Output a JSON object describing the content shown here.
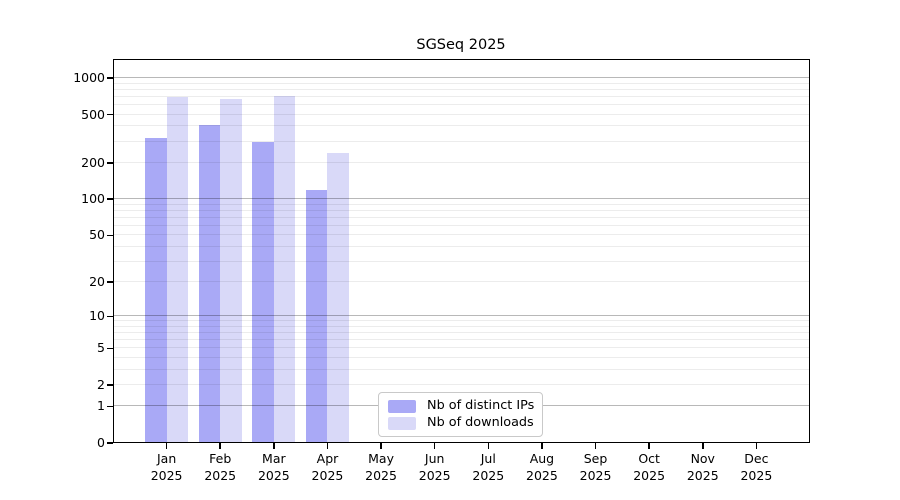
{
  "title": "SGSeq 2025",
  "x_axis": {
    "months": [
      "Jan",
      "Feb",
      "Mar",
      "Apr",
      "May",
      "Jun",
      "Jul",
      "Aug",
      "Sep",
      "Oct",
      "Nov",
      "Dec"
    ],
    "year": "2025"
  },
  "y_axis": {
    "tick_labels": [
      "0",
      "1",
      "2",
      "5",
      "10",
      "20",
      "50",
      "100",
      "200",
      "500",
      "1000"
    ]
  },
  "legend": {
    "items": [
      {
        "label": "Nb of distinct IPs",
        "color": "#a9a9f6"
      },
      {
        "label": "Nb of downloads",
        "color": "#d9d9f8"
      }
    ]
  },
  "colors": {
    "bar_distinct_ips": "#a9a9f6",
    "bar_downloads": "#d9d9f8",
    "major_gridline": "#b8b8b8",
    "minor_gridline": "#ececec",
    "axis": "#000000"
  },
  "chart_data": {
    "type": "bar",
    "title": "SGSeq 2025",
    "categories": [
      "Jan 2025",
      "Feb 2025",
      "Mar 2025",
      "Apr 2025",
      "May 2025",
      "Jun 2025",
      "Jul 2025",
      "Aug 2025",
      "Sep 2025",
      "Oct 2025",
      "Nov 2025",
      "Dec 2025"
    ],
    "series": [
      {
        "name": "Nb of distinct IPs",
        "color": "#a9a9f6",
        "values": [
          320,
          410,
          300,
          120,
          0,
          0,
          0,
          0,
          0,
          0,
          0,
          0
        ]
      },
      {
        "name": "Nb of downloads",
        "color": "#d9d9f8",
        "values": [
          700,
          670,
          705,
          240,
          0,
          0,
          0,
          0,
          0,
          0,
          0,
          0
        ]
      }
    ],
    "xlabel": "",
    "ylabel": "",
    "y_scale": "log10(1+x)",
    "y_ticks": [
      0,
      1,
      2,
      5,
      10,
      20,
      50,
      100,
      200,
      500,
      1000
    ],
    "ylim": [
      0,
      1438
    ],
    "grid": "horizontal, major and minor, drawn over bars",
    "legend_position": "lower center"
  }
}
